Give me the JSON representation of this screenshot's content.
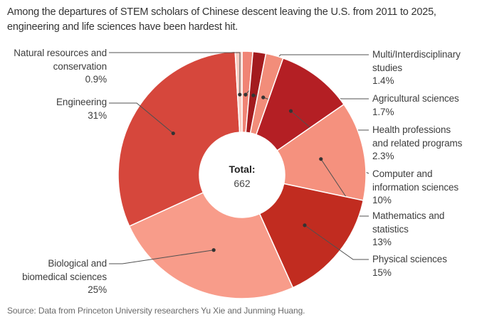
{
  "title": "Among the departures of STEM scholars of Chinese descent leaving the U.S. from 2011 to 2025, engineering and life sciences have been hardest hit.",
  "source": "Source: Data from Princeton University researchers Yu Xie and Junming Huang.",
  "center": {
    "label": "Total:",
    "value": "662"
  },
  "chart_data": {
    "type": "pie",
    "donut": true,
    "title": "Among the departures of STEM scholars of Chinese descent leaving the U.S. from 2011 to 2025, engineering and life sciences have been hardest hit.",
    "total_label": "Total:",
    "total_value": 662,
    "direction": "clockwise",
    "start_angle_deg": 0,
    "slices": [
      {
        "label": "Multi/Interdisciplinary studies",
        "label_lines": [
          "Multi/Interdisciplinary",
          "studies"
        ],
        "pct": 1.4,
        "pct_label": "1.4%",
        "color": "#f08475"
      },
      {
        "label": "Agricultural sciences",
        "label_lines": [
          "Agricultural sciences"
        ],
        "pct": 1.7,
        "pct_label": "1.7%",
        "color": "#a31b1e"
      },
      {
        "label": "Health professions and related programs",
        "label_lines": [
          "Health professions",
          "and related programs"
        ],
        "pct": 2.3,
        "pct_label": "2.3%",
        "color": "#f28d7a"
      },
      {
        "label": "Computer and information sciences",
        "label_lines": [
          "Computer and",
          "information sciences"
        ],
        "pct": 10,
        "pct_label": "10%",
        "color": "#b41f24"
      },
      {
        "label": "Mathematics and statistics",
        "label_lines": [
          "Mathematics and",
          "statistics"
        ],
        "pct": 13,
        "pct_label": "13%",
        "color": "#f5917e"
      },
      {
        "label": "Physical sciences",
        "label_lines": [
          "Physical sciences"
        ],
        "pct": 15,
        "pct_label": "15%",
        "color": "#c12c20"
      },
      {
        "label": "Biological and biomedical sciences",
        "label_lines": [
          "Biological and",
          "biomedical sciences"
        ],
        "pct": 25,
        "pct_label": "25%",
        "color": "#f89c8a"
      },
      {
        "label": "Engineering",
        "label_lines": [
          "Engineering"
        ],
        "pct": 31,
        "pct_label": "31%",
        "color": "#d6473c"
      },
      {
        "label": "Natural resources and conservation",
        "label_lines": [
          "Natural resources and",
          "conservation"
        ],
        "pct": 0.9,
        "pct_label": "0.9%",
        "color": "#f8ccc1"
      }
    ]
  }
}
